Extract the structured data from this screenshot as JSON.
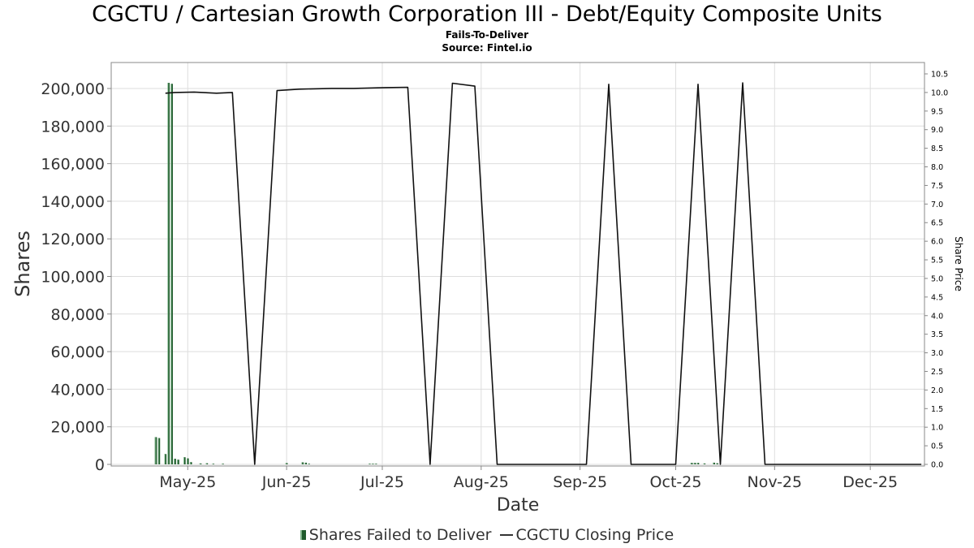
{
  "title": "CGCTU / Cartesian Growth Corporation III - Debt/Equity Composite Units",
  "subtitle": "Fails-To-Deliver",
  "source": "Source: Fintel.io",
  "chart_data": {
    "type": "bar+line",
    "xlabel": "Date",
    "ylabel_left": "Shares",
    "ylabel_right": "Share Price",
    "x_ticks": [
      "May-25",
      "Jun-25",
      "Jul-25",
      "Aug-25",
      "Sep-25",
      "Oct-25",
      "Nov-25",
      "Dec-25"
    ],
    "x_range": [
      "2025-04-07",
      "2025-12-18"
    ],
    "y_left_ticks": [
      "0",
      "20,000",
      "40,000",
      "60,000",
      "80,000",
      "100,000",
      "120,000",
      "140,000",
      "160,000",
      "180,000",
      "200,000"
    ],
    "y_left_range": [
      0,
      215000
    ],
    "y_right_ticks": [
      "0.0",
      "0.5",
      "1.0",
      "1.5",
      "2.0",
      "2.5",
      "3.0",
      "3.5",
      "4.0",
      "4.5",
      "5.0",
      "5.5",
      "6.0",
      "6.5",
      "7.0",
      "7.5",
      "8.0",
      "8.5",
      "9.0",
      "9.5",
      "10.0",
      "10.5"
    ],
    "y_right_range": [
      0,
      10.8
    ],
    "grid": true,
    "legend_position": "bottom",
    "series": [
      {
        "name": "Shares Failed to Deliver",
        "type": "bar",
        "color": "#1f5b2c",
        "points": [
          {
            "date": "2025-04-21",
            "value": 14500
          },
          {
            "date": "2025-04-22",
            "value": 14000
          },
          {
            "date": "2025-04-24",
            "value": 5500
          },
          {
            "date": "2025-04-25",
            "value": 203000
          },
          {
            "date": "2025-04-26",
            "value": 202500
          },
          {
            "date": "2025-04-27",
            "value": 3000
          },
          {
            "date": "2025-04-28",
            "value": 2500
          },
          {
            "date": "2025-04-30",
            "value": 3800
          },
          {
            "date": "2025-05-01",
            "value": 3200
          },
          {
            "date": "2025-05-02",
            "value": 1200
          },
          {
            "date": "2025-05-05",
            "value": 500
          },
          {
            "date": "2025-05-07",
            "value": 600
          },
          {
            "date": "2025-05-09",
            "value": 300
          },
          {
            "date": "2025-05-12",
            "value": 300
          },
          {
            "date": "2025-06-01",
            "value": 700
          },
          {
            "date": "2025-06-06",
            "value": 1100
          },
          {
            "date": "2025-06-07",
            "value": 900
          },
          {
            "date": "2025-06-08",
            "value": 300
          },
          {
            "date": "2025-06-27",
            "value": 300
          },
          {
            "date": "2025-06-28",
            "value": 300
          },
          {
            "date": "2025-06-29",
            "value": 300
          },
          {
            "date": "2025-10-06",
            "value": 800
          },
          {
            "date": "2025-10-07",
            "value": 800
          },
          {
            "date": "2025-10-08",
            "value": 800
          },
          {
            "date": "2025-10-10",
            "value": 500
          },
          {
            "date": "2025-10-13",
            "value": 900
          },
          {
            "date": "2025-10-14",
            "value": 600
          }
        ]
      },
      {
        "name": "CGCTU Closing Price",
        "type": "line",
        "color": "#111111",
        "points": [
          {
            "date": "2025-04-24",
            "value": 9.98
          },
          {
            "date": "2025-04-27",
            "value": 10.0
          },
          {
            "date": "2025-05-03",
            "value": 10.01
          },
          {
            "date": "2025-05-10",
            "value": 9.98
          },
          {
            "date": "2025-05-15",
            "value": 10.0
          },
          {
            "date": "2025-05-22",
            "value": 0.0
          },
          {
            "date": "2025-05-29",
            "value": 10.05
          },
          {
            "date": "2025-06-05",
            "value": 10.09
          },
          {
            "date": "2025-06-15",
            "value": 10.11
          },
          {
            "date": "2025-06-22",
            "value": 10.11
          },
          {
            "date": "2025-07-02",
            "value": 10.13
          },
          {
            "date": "2025-07-09",
            "value": 10.14
          },
          {
            "date": "2025-07-16",
            "value": 0.0
          },
          {
            "date": "2025-07-23",
            "value": 10.25
          },
          {
            "date": "2025-07-30",
            "value": 10.17
          },
          {
            "date": "2025-08-06",
            "value": 0.0
          },
          {
            "date": "2025-09-03",
            "value": 0.0
          },
          {
            "date": "2025-09-10",
            "value": 10.22
          },
          {
            "date": "2025-09-17",
            "value": 0.0
          },
          {
            "date": "2025-10-01",
            "value": 0.0
          },
          {
            "date": "2025-10-08",
            "value": 10.22
          },
          {
            "date": "2025-10-15",
            "value": 0.0
          },
          {
            "date": "2025-10-22",
            "value": 10.26
          },
          {
            "date": "2025-10-29",
            "value": 0.0
          },
          {
            "date": "2025-12-17",
            "value": 0.0
          }
        ]
      }
    ]
  }
}
